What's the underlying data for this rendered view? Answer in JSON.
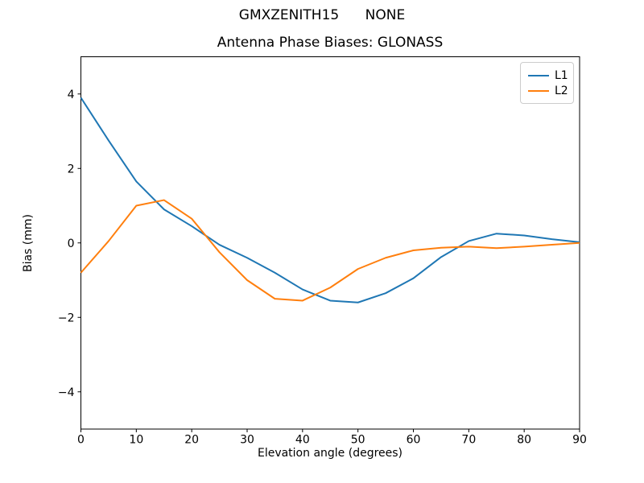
{
  "chart_data": {
    "type": "line",
    "suptitle": "GMXZENITH15      NONE",
    "title": "Antenna Phase Biases: GLONASS",
    "xlabel": "Elevation angle (degrees)",
    "ylabel": "Bias (mm)",
    "xlim": [
      0,
      90
    ],
    "ylim": [
      -5,
      5
    ],
    "xticks": [
      0,
      10,
      20,
      30,
      40,
      50,
      60,
      70,
      80,
      90
    ],
    "yticks": [
      -4,
      -2,
      0,
      2,
      4
    ],
    "grid": false,
    "legend_position": "upper right",
    "x": [
      0,
      5,
      10,
      15,
      20,
      25,
      30,
      35,
      40,
      45,
      50,
      55,
      60,
      65,
      70,
      75,
      80,
      85,
      90
    ],
    "series": [
      {
        "name": "L1",
        "color": "#1f77b4",
        "values": [
          3.9,
          2.75,
          1.65,
          0.9,
          0.45,
          -0.05,
          -0.4,
          -0.8,
          -1.25,
          -1.55,
          -1.6,
          -1.35,
          -0.95,
          -0.38,
          0.05,
          0.25,
          0.2,
          0.1,
          0.02
        ]
      },
      {
        "name": "L2",
        "color": "#ff7f0e",
        "values": [
          -0.8,
          0.05,
          1.0,
          1.15,
          0.65,
          -0.25,
          -1.0,
          -1.5,
          -1.55,
          -1.2,
          -0.7,
          -0.4,
          -0.2,
          -0.13,
          -0.1,
          -0.14,
          -0.1,
          -0.05,
          0.0
        ]
      }
    ]
  }
}
